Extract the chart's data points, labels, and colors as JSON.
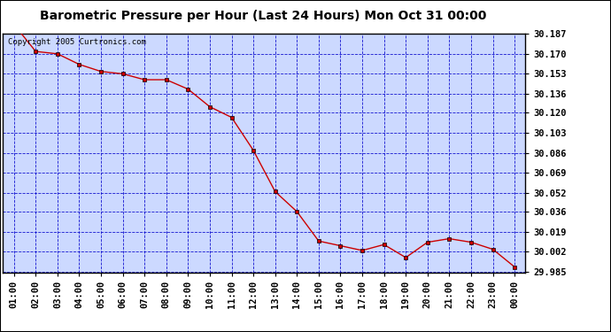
{
  "title": "Barometric Pressure per Hour (Last 24 Hours) Mon Oct 31 00:00",
  "copyright": "Copyright 2005 Curtronics.com",
  "x_labels": [
    "01:00",
    "02:00",
    "03:00",
    "04:00",
    "05:00",
    "06:00",
    "07:00",
    "08:00",
    "09:00",
    "10:00",
    "11:00",
    "12:00",
    "13:00",
    "14:00",
    "15:00",
    "16:00",
    "17:00",
    "18:00",
    "19:00",
    "20:00",
    "21:00",
    "22:00",
    "23:00",
    "00:00"
  ],
  "y_values": [
    30.195,
    30.172,
    30.17,
    30.161,
    30.155,
    30.153,
    30.148,
    30.148,
    30.14,
    30.125,
    30.116,
    30.088,
    30.053,
    30.036,
    30.011,
    30.007,
    30.003,
    30.008,
    29.997,
    30.01,
    30.013,
    30.01,
    30.004,
    29.989
  ],
  "ylim_min": 29.985,
  "ylim_max": 30.187,
  "yticks": [
    29.985,
    30.002,
    30.019,
    30.036,
    30.052,
    30.069,
    30.086,
    30.103,
    30.12,
    30.136,
    30.153,
    30.17,
    30.187
  ],
  "line_color": "#cc0000",
  "marker_color": "#000000",
  "plot_bg_color": "#ccd9ff",
  "grid_color": "#0000cc",
  "outer_bg_color": "#ffffff",
  "title_fontsize": 10,
  "tick_fontsize": 7.5
}
